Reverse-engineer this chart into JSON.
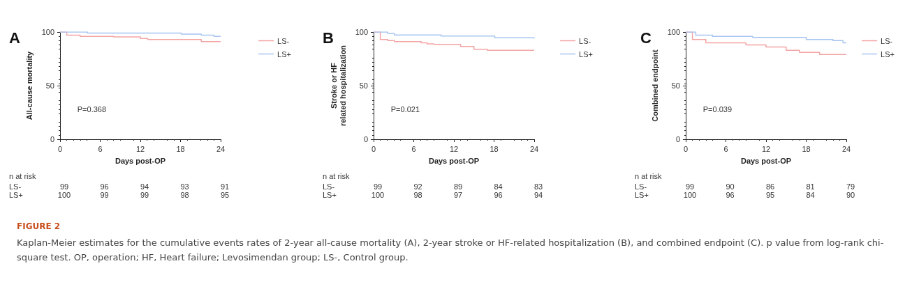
{
  "chart_data": [
    {
      "type": "step",
      "title": "A",
      "ylabel": "All-cause mortality",
      "xlabel": "Days post-OP",
      "xlim": [
        0,
        24
      ],
      "xticks": [
        0,
        6,
        12,
        18,
        24
      ],
      "ylim": [
        0,
        100
      ],
      "yticks": [
        0,
        50,
        100
      ],
      "grid": false,
      "legend": "right",
      "marker": "none",
      "series": [
        {
          "name": "LS-",
          "color": "#f4a3a3",
          "x": [
            0,
            1,
            3,
            8,
            12,
            13.1,
            21.1,
            24
          ],
          "values": [
            100,
            97,
            96,
            95.5,
            94,
            93,
            91,
            91
          ]
        },
        {
          "name": "LS+",
          "color": "#a6c4f0",
          "x": [
            0,
            4.1,
            18.1,
            21.1,
            23,
            24
          ],
          "values": [
            100,
            99,
            98,
            97,
            96,
            96
          ]
        }
      ],
      "annotations": [
        "P=0.368",
        "n at risk",
        "LS- 99 96 94 93 91",
        "LS+ 100 99 99 98 95",
        "FIGURE 2",
        "Kaplan-Meier estimates for the cumulative events rates of 2-year all-cause mortality (A), 2-year stroke or HF-related hospitalization (B), and combined endpoint (C). p value from log-rank chi-square test. OP, operation; HF, Heart failure; Levosimendan group; LS-, Control group."
      ]
    },
    {
      "type": "step",
      "title": "B",
      "ylabel": "Stroke or HF\nrelated hospitalization",
      "xlabel": "Days post-OP",
      "xlim": [
        0,
        24
      ],
      "xticks": [
        0,
        6,
        12,
        18,
        24
      ],
      "ylim": [
        0,
        100
      ],
      "yticks": [
        0,
        50,
        100
      ],
      "grid": false,
      "legend": "right",
      "marker": "none",
      "series": [
        {
          "name": "LS-",
          "color": "#f4a3a3",
          "x": [
            0,
            1,
            2.1,
            3.1,
            7.1,
            8,
            9,
            13,
            15,
            17,
            24
          ],
          "values": [
            100,
            93,
            92,
            91,
            90,
            89,
            88.4,
            86.5,
            84,
            83,
            83
          ]
        },
        {
          "name": "LS+",
          "color": "#a6c4f0",
          "x": [
            0,
            2.1,
            3.1,
            10.1,
            18.1,
            24
          ],
          "values": [
            100,
            98.7,
            97.2,
            96.3,
            94.6,
            94
          ]
        }
      ],
      "annotations": [
        "P=0.021",
        "n at risk",
        "LS- 99 92 89 84 83",
        "LS+ 100 98 97 96 94"
      ]
    },
    {
      "type": "step",
      "title": "C",
      "ylabel": "Combined endpoint",
      "xlabel": "Days post-OP",
      "xlim": [
        0,
        24
      ],
      "xticks": [
        0,
        6,
        12,
        18,
        24
      ],
      "ylim": [
        0,
        100
      ],
      "yticks": [
        0,
        50,
        100
      ],
      "grid": false,
      "legend": "right",
      "marker": "none",
      "series": [
        {
          "name": "LS-",
          "color": "#f4a3a3",
          "x": [
            0,
            1,
            3,
            9,
            12,
            15,
            17,
            20,
            24
          ],
          "values": [
            100,
            93,
            90,
            88,
            86,
            83,
            81,
            79,
            79
          ]
        },
        {
          "name": "LS+",
          "color": "#a6c4f0",
          "x": [
            0,
            1.5,
            4,
            10,
            18,
            22,
            23.5,
            24
          ],
          "values": [
            100,
            97,
            96,
            95,
            93,
            92,
            90,
            90
          ]
        }
      ],
      "annotations": [
        "P=0.039",
        "n at risk",
        "LS- 99 90 86 81 79",
        "LS+ 100 96 95 84 90"
      ]
    }
  ]
}
